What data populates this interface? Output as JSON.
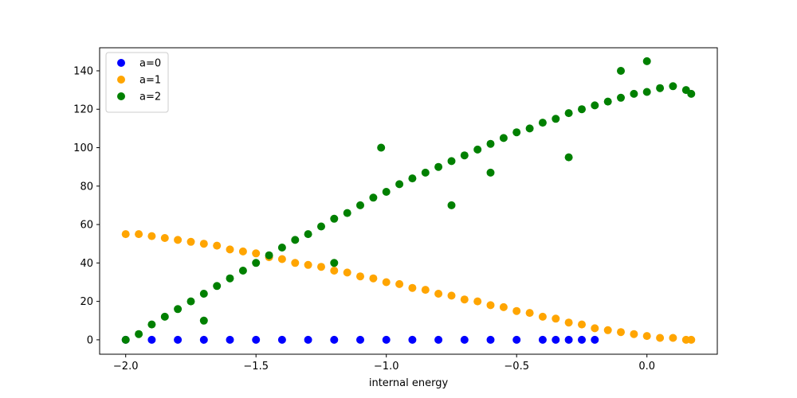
{
  "chart_data": {
    "type": "scatter",
    "title": "",
    "xlabel": "internal energy",
    "ylabel": "",
    "xlim": [
      -2.1,
      0.27
    ],
    "ylim": [
      -7.5,
      152
    ],
    "x_ticks": [
      {
        "value": -2.0,
        "label": "−2.0"
      },
      {
        "value": -1.5,
        "label": "−1.5"
      },
      {
        "value": -1.0,
        "label": "−1.0"
      },
      {
        "value": -0.5,
        "label": "−0.5"
      },
      {
        "value": 0.0,
        "label": "0.0"
      }
    ],
    "y_ticks": [
      {
        "value": 0,
        "label": "0"
      },
      {
        "value": 20,
        "label": "20"
      },
      {
        "value": 40,
        "label": "40"
      },
      {
        "value": 60,
        "label": "60"
      },
      {
        "value": 80,
        "label": "80"
      },
      {
        "value": 100,
        "label": "100"
      },
      {
        "value": 120,
        "label": "120"
      },
      {
        "value": 140,
        "label": "140"
      }
    ],
    "grid": false,
    "legend_position": "top-left",
    "series": [
      {
        "name": "a=0",
        "color": "#0000ff",
        "points": [
          [
            -2.0,
            0
          ],
          [
            -1.9,
            0
          ],
          [
            -1.8,
            0
          ],
          [
            -1.7,
            0
          ],
          [
            -1.6,
            0
          ],
          [
            -1.5,
            0
          ],
          [
            -1.4,
            0
          ],
          [
            -1.3,
            0
          ],
          [
            -1.2,
            0
          ],
          [
            -1.1,
            0
          ],
          [
            -1.0,
            0
          ],
          [
            -0.9,
            0
          ],
          [
            -0.8,
            0
          ],
          [
            -0.7,
            0
          ],
          [
            -0.6,
            0
          ],
          [
            -0.5,
            0
          ],
          [
            -0.4,
            0
          ],
          [
            -0.35,
            0
          ],
          [
            -0.3,
            0
          ],
          [
            -0.25,
            0
          ],
          [
            -0.2,
            0
          ]
        ]
      },
      {
        "name": "a=1",
        "color": "#ffa500",
        "points": [
          [
            -2.0,
            55
          ],
          [
            -1.95,
            55
          ],
          [
            -1.9,
            54
          ],
          [
            -1.85,
            53
          ],
          [
            -1.8,
            52
          ],
          [
            -1.75,
            51
          ],
          [
            -1.7,
            50
          ],
          [
            -1.65,
            49
          ],
          [
            -1.6,
            47
          ],
          [
            -1.55,
            46
          ],
          [
            -1.5,
            45
          ],
          [
            -1.45,
            43
          ],
          [
            -1.4,
            42
          ],
          [
            -1.35,
            40
          ],
          [
            -1.3,
            39
          ],
          [
            -1.25,
            38
          ],
          [
            -1.2,
            36
          ],
          [
            -1.15,
            35
          ],
          [
            -1.1,
            33
          ],
          [
            -1.05,
            32
          ],
          [
            -1.0,
            30
          ],
          [
            -0.95,
            29
          ],
          [
            -0.9,
            27
          ],
          [
            -0.85,
            26
          ],
          [
            -0.8,
            24
          ],
          [
            -0.75,
            23
          ],
          [
            -0.7,
            21
          ],
          [
            -0.65,
            20
          ],
          [
            -0.6,
            18
          ],
          [
            -0.55,
            17
          ],
          [
            -0.5,
            15
          ],
          [
            -0.45,
            14
          ],
          [
            -0.4,
            12
          ],
          [
            -0.35,
            11
          ],
          [
            -0.3,
            9
          ],
          [
            -0.25,
            8
          ],
          [
            -0.2,
            6
          ],
          [
            -0.15,
            5
          ],
          [
            -0.1,
            4
          ],
          [
            -0.05,
            3
          ],
          [
            0.0,
            2
          ],
          [
            0.05,
            1
          ],
          [
            0.1,
            1
          ],
          [
            0.15,
            0
          ],
          [
            0.17,
            0
          ]
        ]
      },
      {
        "name": "a=2",
        "color": "#008000",
        "points": [
          [
            -2.0,
            0
          ],
          [
            -1.95,
            3
          ],
          [
            -1.9,
            8
          ],
          [
            -1.85,
            12
          ],
          [
            -1.8,
            16
          ],
          [
            -1.75,
            20
          ],
          [
            -1.7,
            24
          ],
          [
            -1.65,
            28
          ],
          [
            -1.6,
            32
          ],
          [
            -1.55,
            36
          ],
          [
            -1.5,
            40
          ],
          [
            -1.45,
            44
          ],
          [
            -1.4,
            48
          ],
          [
            -1.35,
            52
          ],
          [
            -1.3,
            55
          ],
          [
            -1.25,
            59
          ],
          [
            -1.2,
            63
          ],
          [
            -1.15,
            66
          ],
          [
            -1.1,
            70
          ],
          [
            -1.05,
            74
          ],
          [
            -1.0,
            77
          ],
          [
            -0.95,
            81
          ],
          [
            -0.9,
            84
          ],
          [
            -0.85,
            87
          ],
          [
            -0.8,
            90
          ],
          [
            -0.75,
            93
          ],
          [
            -0.7,
            96
          ],
          [
            -0.65,
            99
          ],
          [
            -0.6,
            102
          ],
          [
            -0.55,
            105
          ],
          [
            -0.5,
            108
          ],
          [
            -0.45,
            110
          ],
          [
            -0.4,
            113
          ],
          [
            -0.35,
            115
          ],
          [
            -0.3,
            118
          ],
          [
            -0.25,
            120
          ],
          [
            -0.2,
            122
          ],
          [
            -0.15,
            124
          ],
          [
            -0.1,
            126
          ],
          [
            -0.05,
            128
          ],
          [
            0.0,
            129
          ],
          [
            0.05,
            131
          ],
          [
            0.1,
            132
          ],
          [
            0.15,
            130
          ],
          [
            0.17,
            128
          ],
          [
            -1.02,
            100
          ],
          [
            -0.6,
            87
          ],
          [
            -0.75,
            70
          ],
          [
            -1.2,
            40
          ],
          [
            -1.7,
            10
          ],
          [
            -0.3,
            95
          ],
          [
            0.0,
            145
          ],
          [
            -0.1,
            140
          ]
        ]
      }
    ]
  }
}
